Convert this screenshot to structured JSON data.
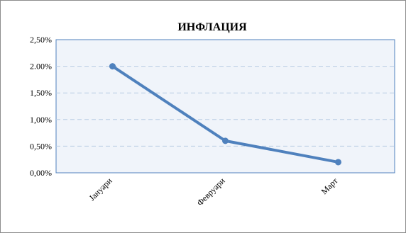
{
  "chart_data": {
    "type": "line",
    "title": "ИНФЛАЦИЯ",
    "xlabel": "",
    "ylabel": "",
    "categories": [
      "Јануари",
      "Февруари",
      "Март"
    ],
    "series": [
      {
        "values": [
          2.0,
          0.6,
          0.2
        ]
      }
    ],
    "ylim": [
      0,
      2.5
    ],
    "y_ticks": [
      0.0,
      0.5,
      1.0,
      1.5,
      2.0,
      2.5
    ],
    "y_tick_labels": [
      "0,00%",
      "0,50%",
      "1,00%",
      "1,50%",
      "2.00%",
      "2,50%"
    ],
    "grid": true,
    "legend": "none",
    "colors": {
      "line": "#4f81bd",
      "plot_background": "#f0f4fa",
      "plot_border": "#4f81bd",
      "gridline": "#b8cce4"
    }
  }
}
